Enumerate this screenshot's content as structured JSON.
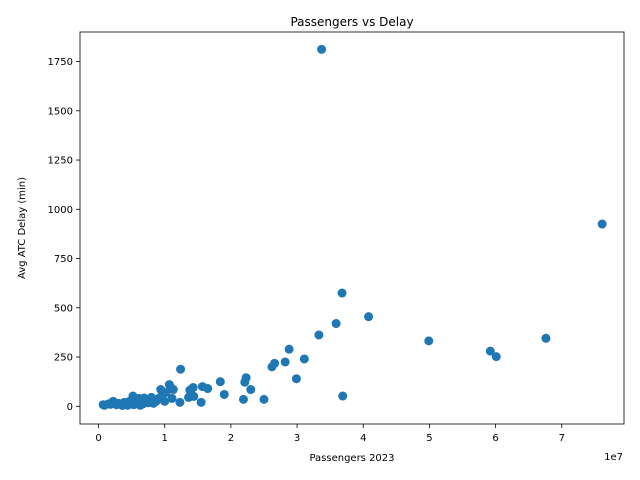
{
  "chart_data": {
    "type": "scatter",
    "title": "Passengers vs Delay",
    "xlabel": "Passengers 2023",
    "ylabel": "Avg ATC Delay (min)",
    "x_offset_text": "1e7",
    "x_scale": 10000000,
    "xlim": [
      -2800000,
      79400000
    ],
    "ylim": [
      -90,
      1900
    ],
    "x_ticks": [
      0,
      10000000,
      20000000,
      30000000,
      40000000,
      50000000,
      60000000,
      70000000
    ],
    "x_tick_labels": [
      "0",
      "1",
      "2",
      "3",
      "4",
      "5",
      "6",
      "7"
    ],
    "y_ticks": [
      0,
      250,
      500,
      750,
      1000,
      1250,
      1500,
      1750
    ],
    "y_tick_labels": [
      "0",
      "250",
      "500",
      "750",
      "1000",
      "1250",
      "1500",
      "1750"
    ],
    "grid": false,
    "marker_color": "#1f77b4",
    "series": [
      {
        "points": [
          [
            33700000,
            1812
          ],
          [
            76100000,
            925
          ],
          [
            36800000,
            575
          ],
          [
            40800000,
            455
          ],
          [
            67600000,
            345
          ],
          [
            35900000,
            420
          ],
          [
            33300000,
            362
          ],
          [
            49900000,
            332
          ],
          [
            59200000,
            280
          ],
          [
            60100000,
            252
          ],
          [
            28800000,
            290
          ],
          [
            31100000,
            240
          ],
          [
            28200000,
            225
          ],
          [
            26600000,
            218
          ],
          [
            26200000,
            200
          ],
          [
            29900000,
            140
          ],
          [
            22300000,
            145
          ],
          [
            22100000,
            122
          ],
          [
            23000000,
            85
          ],
          [
            18400000,
            125
          ],
          [
            12400000,
            188
          ],
          [
            36900000,
            52
          ],
          [
            25000000,
            35
          ],
          [
            21900000,
            35
          ],
          [
            19000000,
            60
          ],
          [
            16500000,
            90
          ],
          [
            15700000,
            100
          ],
          [
            15500000,
            20
          ],
          [
            14400000,
            50
          ],
          [
            14300000,
            95
          ],
          [
            14000000,
            60
          ],
          [
            13800000,
            82
          ],
          [
            13600000,
            45
          ],
          [
            12300000,
            20
          ],
          [
            11300000,
            85
          ],
          [
            11100000,
            40
          ],
          [
            10900000,
            95
          ],
          [
            10700000,
            110
          ],
          [
            10200000,
            70
          ],
          [
            10000000,
            25
          ],
          [
            9600000,
            55
          ],
          [
            9400000,
            85
          ],
          [
            9100000,
            40
          ],
          [
            8700000,
            25
          ],
          [
            8300000,
            15
          ],
          [
            8000000,
            45
          ],
          [
            7800000,
            35
          ],
          [
            7500000,
            18
          ],
          [
            7100000,
            30
          ],
          [
            6900000,
            42
          ],
          [
            6700000,
            12
          ],
          [
            6500000,
            25
          ],
          [
            6300000,
            5
          ],
          [
            6100000,
            40
          ],
          [
            5800000,
            20
          ],
          [
            5500000,
            30
          ],
          [
            5300000,
            8
          ],
          [
            5200000,
            52
          ],
          [
            4900000,
            15
          ],
          [
            4700000,
            25
          ],
          [
            4400000,
            5
          ],
          [
            4200000,
            12
          ],
          [
            3900000,
            20
          ],
          [
            3600000,
            4
          ],
          [
            3300000,
            10
          ],
          [
            3000000,
            15
          ],
          [
            2700000,
            8
          ],
          [
            2400000,
            18
          ],
          [
            2200000,
            25
          ],
          [
            1800000,
            10
          ],
          [
            1500000,
            12
          ],
          [
            900000,
            5
          ],
          [
            700000,
            8
          ]
        ]
      }
    ]
  }
}
